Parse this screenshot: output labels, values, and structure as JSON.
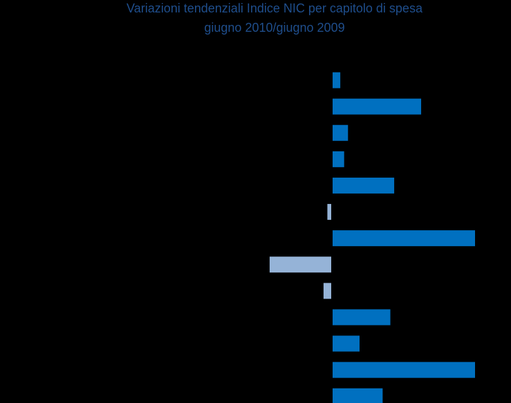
{
  "chart_data": {
    "type": "barh",
    "title": "Variazioni tendenziali Indice NIC per capitolo di spesa",
    "subtitle": "giugno 2010/giugno 2009",
    "categories": [
      null,
      null,
      null,
      null,
      null,
      null,
      null,
      null,
      null,
      null,
      null,
      null,
      null
    ],
    "values": [
      0.2,
      2.3,
      0.4,
      0.3,
      1.6,
      -0.1,
      3.7,
      -1.6,
      -0.2,
      1.5,
      0.7,
      3.7,
      1.3
    ],
    "color": "#0070c0",
    "negative_color": "#95b3d7"
  }
}
